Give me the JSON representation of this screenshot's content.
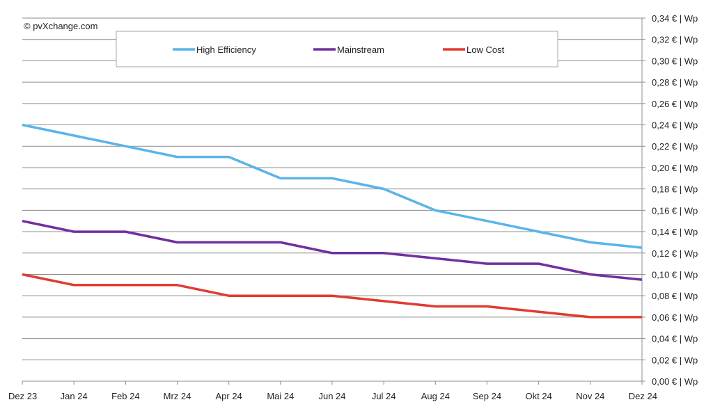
{
  "copyright": "© pvXchange.com",
  "chart_data": {
    "type": "line",
    "title": "",
    "xlabel": "",
    "ylabel": "",
    "categories": [
      "Dez 23",
      "Jan 24",
      "Feb 24",
      "Mrz 24",
      "Apr 24",
      "Mai 24",
      "Jun 24",
      "Jul 24",
      "Aug 24",
      "Sep 24",
      "Okt 24",
      "Nov 24",
      "Dez 24"
    ],
    "ylim": [
      0,
      0.34
    ],
    "ystep": 0.02,
    "ytick_format": "{v} € | Wp",
    "ytick_labels": [
      "0,00 € | Wp",
      "0,02 € | Wp",
      "0,04 € | Wp",
      "0,06 € | Wp",
      "0,08 € | Wp",
      "0,10 € | Wp",
      "0,12 € | Wp",
      "0,14 € | Wp",
      "0,16 € | Wp",
      "0,18 € | Wp",
      "0,20 € | Wp",
      "0,22 € | Wp",
      "0,24 € | Wp",
      "0,26 € | Wp",
      "0,28 € | Wp",
      "0,30 € | Wp",
      "0,32 € | Wp",
      "0,34 € | Wp"
    ],
    "grid": true,
    "legend_position": "top",
    "y_axis_side": "right",
    "series": [
      {
        "name": "High Efficiency",
        "color": "#5ab4e8",
        "values": [
          0.24,
          0.23,
          0.22,
          0.21,
          0.21,
          0.19,
          0.19,
          0.18,
          0.16,
          0.15,
          0.14,
          0.13,
          0.125
        ]
      },
      {
        "name": "Mainstream",
        "color": "#7030a0",
        "values": [
          0.15,
          0.14,
          0.14,
          0.13,
          0.13,
          0.13,
          0.12,
          0.12,
          0.115,
          0.11,
          0.11,
          0.1,
          0.095
        ]
      },
      {
        "name": "Low Cost",
        "color": "#e03c31",
        "values": [
          0.1,
          0.09,
          0.09,
          0.09,
          0.08,
          0.08,
          0.08,
          0.075,
          0.07,
          0.07,
          0.065,
          0.06,
          0.06
        ]
      }
    ]
  }
}
